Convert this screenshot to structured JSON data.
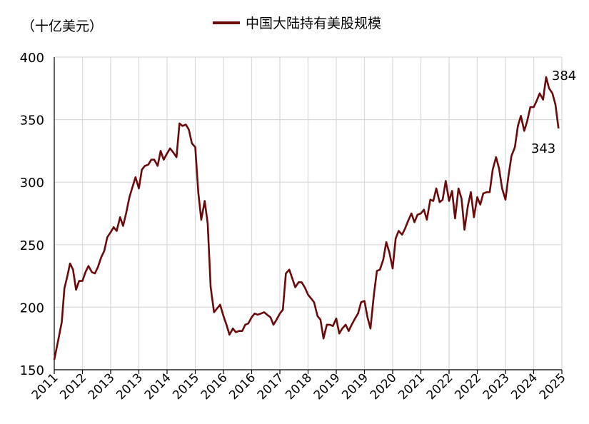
{
  "chart_data": {
    "type": "line",
    "unit_label": "（十亿美元）",
    "series": [
      {
        "name": "中国大陆持有美股规模",
        "color": "#6b0a0a",
        "points": [
          [
            2011.0,
            158
          ],
          [
            2011.1,
            173
          ],
          [
            2011.2,
            188
          ],
          [
            2011.27,
            215
          ],
          [
            2011.35,
            225
          ],
          [
            2011.42,
            235
          ],
          [
            2011.5,
            230
          ],
          [
            2011.58,
            214
          ],
          [
            2011.66,
            221
          ],
          [
            2011.75,
            221
          ],
          [
            2011.83,
            228
          ],
          [
            2011.91,
            233
          ],
          [
            2012.0,
            228
          ],
          [
            2012.08,
            227
          ],
          [
            2012.16,
            232
          ],
          [
            2012.25,
            240
          ],
          [
            2012.33,
            245
          ],
          [
            2012.41,
            256
          ],
          [
            2012.5,
            260
          ],
          [
            2012.58,
            264
          ],
          [
            2012.66,
            261
          ],
          [
            2012.75,
            272
          ],
          [
            2012.83,
            265
          ],
          [
            2012.91,
            275
          ],
          [
            2013.0,
            288
          ],
          [
            2013.08,
            296
          ],
          [
            2013.16,
            304
          ],
          [
            2013.25,
            295
          ],
          [
            2013.33,
            310
          ],
          [
            2013.41,
            313
          ],
          [
            2013.5,
            314
          ],
          [
            2013.58,
            318
          ],
          [
            2013.66,
            318
          ],
          [
            2013.75,
            313
          ],
          [
            2013.83,
            325
          ],
          [
            2013.91,
            318
          ],
          [
            2014.0,
            323
          ],
          [
            2014.08,
            327
          ],
          [
            2014.16,
            324
          ],
          [
            2014.25,
            320
          ],
          [
            2014.33,
            347
          ],
          [
            2014.41,
            345
          ],
          [
            2014.5,
            346
          ],
          [
            2014.58,
            342
          ],
          [
            2014.66,
            331
          ],
          [
            2014.75,
            328
          ],
          [
            2014.83,
            292
          ],
          [
            2014.91,
            270
          ],
          [
            2015.0,
            285
          ],
          [
            2015.08,
            267
          ],
          [
            2015.16,
            216
          ],
          [
            2015.25,
            196
          ],
          [
            2015.33,
            199
          ],
          [
            2015.41,
            202
          ],
          [
            2015.5,
            193
          ],
          [
            2015.58,
            186
          ],
          [
            2015.66,
            178
          ],
          [
            2015.75,
            183
          ],
          [
            2015.83,
            180
          ],
          [
            2015.91,
            181
          ],
          [
            2016.0,
            181
          ],
          [
            2016.08,
            186
          ],
          [
            2016.16,
            187
          ],
          [
            2016.25,
            192
          ],
          [
            2016.33,
            195
          ],
          [
            2016.41,
            194
          ],
          [
            2016.5,
            195
          ],
          [
            2016.58,
            196
          ],
          [
            2016.66,
            194
          ],
          [
            2016.75,
            192
          ],
          [
            2016.83,
            186
          ],
          [
            2016.91,
            190
          ],
          [
            2017.0,
            195
          ],
          [
            2017.08,
            198
          ],
          [
            2017.16,
            227
          ],
          [
            2017.25,
            230
          ],
          [
            2017.33,
            223
          ],
          [
            2017.41,
            216
          ],
          [
            2017.5,
            220
          ],
          [
            2017.58,
            220
          ],
          [
            2017.66,
            216
          ],
          [
            2017.75,
            210
          ],
          [
            2017.83,
            207
          ],
          [
            2017.91,
            204
          ],
          [
            2018.0,
            193
          ],
          [
            2018.08,
            190
          ],
          [
            2018.16,
            175
          ],
          [
            2018.25,
            186
          ],
          [
            2018.33,
            186
          ],
          [
            2018.41,
            185
          ],
          [
            2018.5,
            191
          ],
          [
            2018.58,
            179
          ],
          [
            2018.66,
            183
          ],
          [
            2018.75,
            186
          ],
          [
            2018.83,
            181
          ],
          [
            2018.91,
            186
          ],
          [
            2019.0,
            191
          ],
          [
            2019.08,
            195
          ],
          [
            2019.16,
            204
          ],
          [
            2019.25,
            205
          ],
          [
            2019.33,
            192
          ],
          [
            2019.41,
            183
          ],
          [
            2019.5,
            210
          ],
          [
            2019.58,
            229
          ],
          [
            2019.66,
            230
          ],
          [
            2019.75,
            238
          ],
          [
            2019.83,
            252
          ],
          [
            2019.91,
            244
          ],
          [
            2020.0,
            231
          ],
          [
            2020.08,
            255
          ],
          [
            2020.16,
            261
          ],
          [
            2020.25,
            258
          ],
          [
            2020.33,
            263
          ],
          [
            2020.41,
            269
          ],
          [
            2020.5,
            275
          ],
          [
            2020.58,
            268
          ],
          [
            2020.66,
            274
          ],
          [
            2020.75,
            275
          ],
          [
            2020.83,
            278
          ],
          [
            2020.91,
            270
          ],
          [
            2021.0,
            286
          ],
          [
            2021.08,
            285
          ],
          [
            2021.16,
            295
          ],
          [
            2021.25,
            284
          ],
          [
            2021.33,
            286
          ],
          [
            2021.41,
            301
          ],
          [
            2021.5,
            285
          ],
          [
            2021.58,
            293
          ],
          [
            2021.66,
            271
          ],
          [
            2021.75,
            295
          ],
          [
            2021.83,
            287
          ],
          [
            2021.91,
            262
          ],
          [
            2022.0,
            281
          ],
          [
            2022.08,
            292
          ],
          [
            2022.16,
            272
          ],
          [
            2022.25,
            288
          ],
          [
            2022.33,
            282
          ],
          [
            2022.41,
            291
          ],
          [
            2022.5,
            292
          ],
          [
            2022.58,
            292
          ],
          [
            2022.66,
            310
          ],
          [
            2022.75,
            320
          ],
          [
            2022.83,
            311
          ],
          [
            2022.91,
            295
          ],
          [
            2023.0,
            286
          ],
          [
            2023.08,
            305
          ],
          [
            2023.16,
            321
          ],
          [
            2023.25,
            328
          ],
          [
            2023.33,
            345
          ],
          [
            2023.41,
            353
          ],
          [
            2023.5,
            341
          ],
          [
            2023.58,
            349
          ],
          [
            2023.66,
            360
          ],
          [
            2023.75,
            360
          ],
          [
            2023.83,
            365
          ],
          [
            2023.91,
            371
          ],
          [
            2024.0,
            366
          ],
          [
            2024.08,
            384
          ],
          [
            2024.16,
            375
          ],
          [
            2024.25,
            371
          ],
          [
            2024.33,
            362
          ],
          [
            2024.41,
            343
          ]
        ]
      }
    ],
    "annotations": [
      {
        "text": "384",
        "x": 2024.08,
        "y": 384
      },
      {
        "text": "343",
        "x": 2024.41,
        "y": 343
      }
    ],
    "x_tick_labels": [
      "2011",
      "2012",
      "2013",
      "2013",
      "2014",
      "2015",
      "2016",
      "2016",
      "2017",
      "2018",
      "2019",
      "2019",
      "2020",
      "2021",
      "2022",
      "2022",
      "2023",
      "2024",
      "2025"
    ],
    "x_range": [
      2011,
      2024.5
    ],
    "ylim": [
      150,
      400
    ],
    "y_ticks": [
      150,
      200,
      250,
      300,
      350,
      400
    ],
    "grid": true
  }
}
